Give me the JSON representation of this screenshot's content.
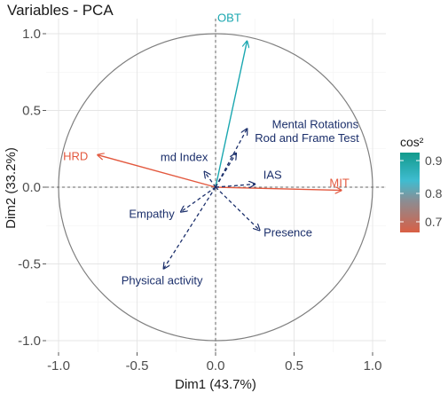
{
  "chart_data": {
    "type": "scatter",
    "title": "Variables - PCA",
    "xlabel": "Dim1 (43.7%)",
    "ylabel": "Dim2 (33.2%)",
    "xlim": [
      -1.1,
      1.1
    ],
    "ylim": [
      -1.05,
      1.05
    ],
    "x_ticks": [
      "-1.0",
      "-0.5",
      "0.0",
      "0.5",
      "1.0"
    ],
    "y_ticks": [
      "-1.0",
      "-0.5",
      "0.0",
      "0.5",
      "1.0"
    ],
    "grid": true,
    "legend": {
      "title": "cos²",
      "position": "right",
      "ticks": [
        "0.9",
        "0.8",
        "0.7"
      ],
      "gradient_colors": [
        "#d95f45",
        "#3fbcd0",
        "#129a8c"
      ]
    },
    "active_variables": [
      {
        "name": "OBT",
        "x": 0.2,
        "y": 0.95,
        "color": "#1aa7b0"
      },
      {
        "name": "HRD",
        "x": -0.75,
        "y": 0.21,
        "color": "#e3583e"
      },
      {
        "name": "MIT",
        "x": 0.8,
        "y": -0.02,
        "color": "#e3583e"
      }
    ],
    "supplementary_variables": [
      {
        "name": "Mental Rotations",
        "x": 0.2,
        "y": 0.38,
        "color": "#1b2f6b"
      },
      {
        "name": "Rod and Frame Test",
        "x": 0.13,
        "y": 0.22,
        "color": "#1b2f6b"
      },
      {
        "name": "IAS",
        "x": 0.25,
        "y": 0.02,
        "color": "#1b2f6b"
      },
      {
        "name": "md Index",
        "x": -0.07,
        "y": 0.1,
        "color": "#1b2f6b"
      },
      {
        "name": "Empathy",
        "x": -0.22,
        "y": -0.16,
        "color": "#1b2f6b"
      },
      {
        "name": "Presence",
        "x": 0.28,
        "y": -0.28,
        "color": "#1b2f6b"
      },
      {
        "name": "Physical activity",
        "x": -0.33,
        "y": -0.53,
        "color": "#1b2f6b"
      }
    ]
  }
}
